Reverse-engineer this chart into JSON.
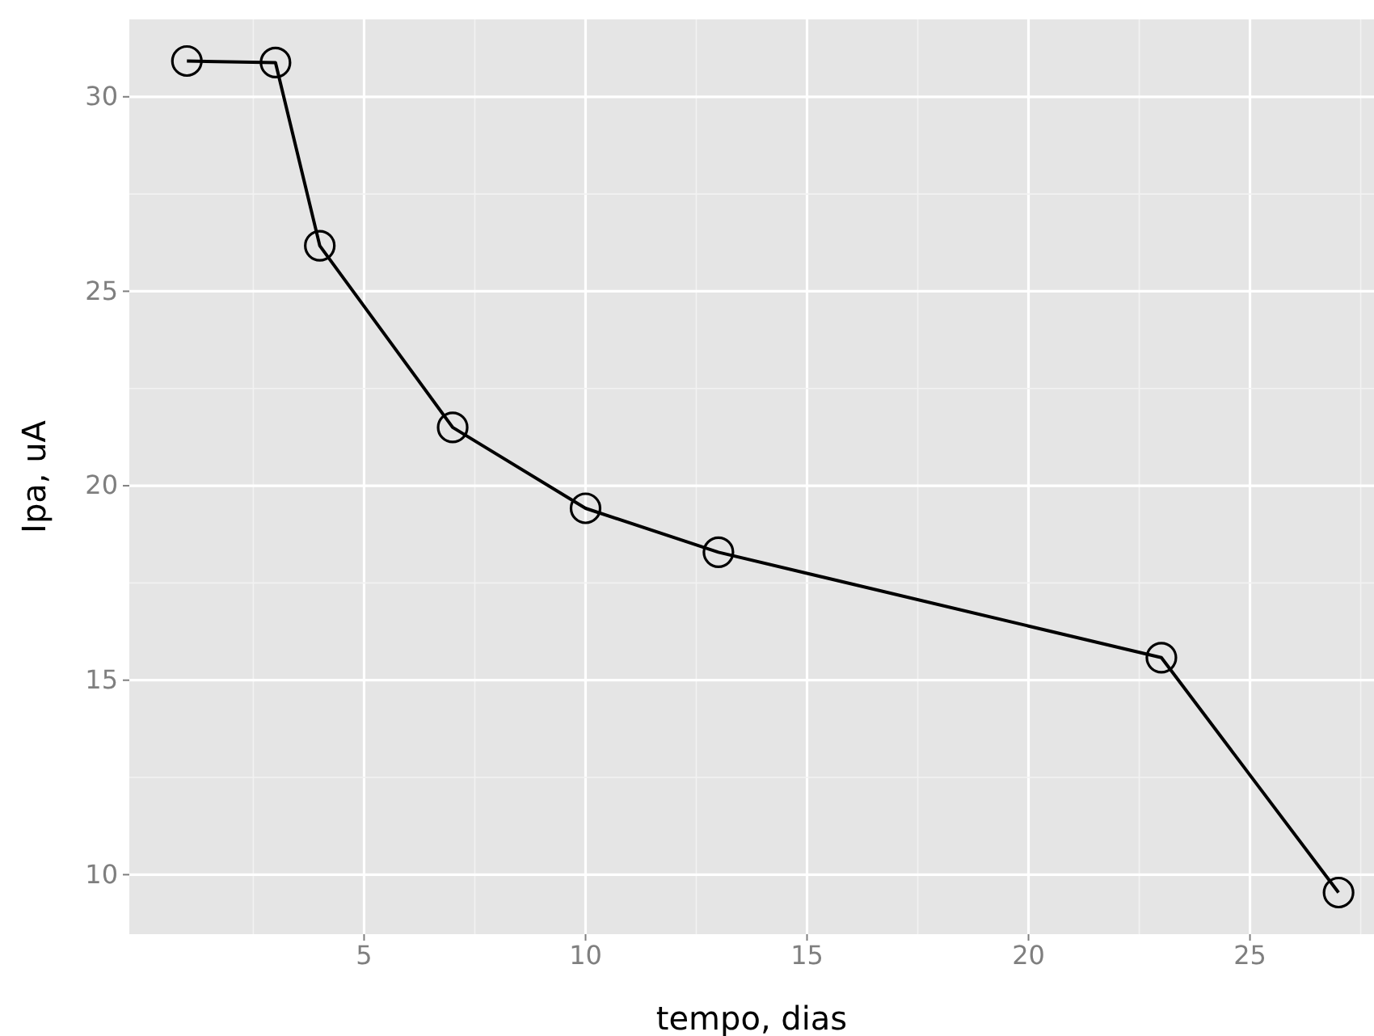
{
  "chart_data": {
    "type": "line",
    "xlabel": "tempo, dias",
    "ylabel": "Ipa, uA",
    "x": [
      1,
      3,
      4,
      7,
      10,
      13,
      23,
      27
    ],
    "values": [
      30.92,
      30.88,
      26.17,
      21.5,
      19.42,
      18.29,
      15.58,
      9.54
    ],
    "color": "#000000",
    "marker": "circle",
    "line_style": "solid",
    "xlim": [
      -0.3,
      27.8
    ],
    "xticks": [
      5,
      10,
      15,
      20,
      25
    ],
    "ylim": [
      8.47,
      31.99
    ],
    "yticks": [
      10,
      15,
      20,
      25,
      30
    ],
    "grid": true
  }
}
